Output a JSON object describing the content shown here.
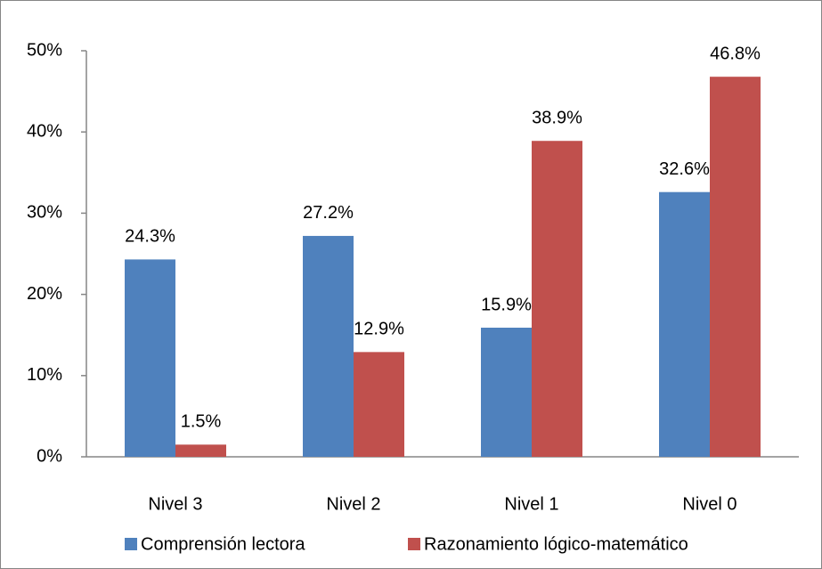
{
  "chart_data": {
    "type": "bar",
    "categories": [
      "Nivel 3",
      "Nivel 2",
      "Nivel 1",
      "Nivel 0"
    ],
    "series": [
      {
        "name": "Comprensión lectora",
        "color": "#4f81bd",
        "values": [
          24.3,
          27.2,
          15.9,
          32.6
        ],
        "value_labels": [
          "24.3%",
          "27.2%",
          "15.9%",
          "32.6%"
        ]
      },
      {
        "name": "Razonamiento lógico-matemático",
        "color": "#c0504d",
        "values": [
          1.5,
          12.9,
          38.9,
          46.8
        ],
        "value_labels": [
          "1.5%",
          "12.9%",
          "38.9%",
          "46.8%"
        ]
      }
    ],
    "ylim": [
      0,
      50
    ],
    "yticks": [
      {
        "value": 0,
        "label": "0%"
      },
      {
        "value": 10,
        "label": "10%"
      },
      {
        "value": 20,
        "label": "20%"
      },
      {
        "value": 30,
        "label": "30%"
      },
      {
        "value": 40,
        "label": "40%"
      },
      {
        "value": 50,
        "label": "50%"
      }
    ],
    "grid": false,
    "legend": "bottom"
  }
}
